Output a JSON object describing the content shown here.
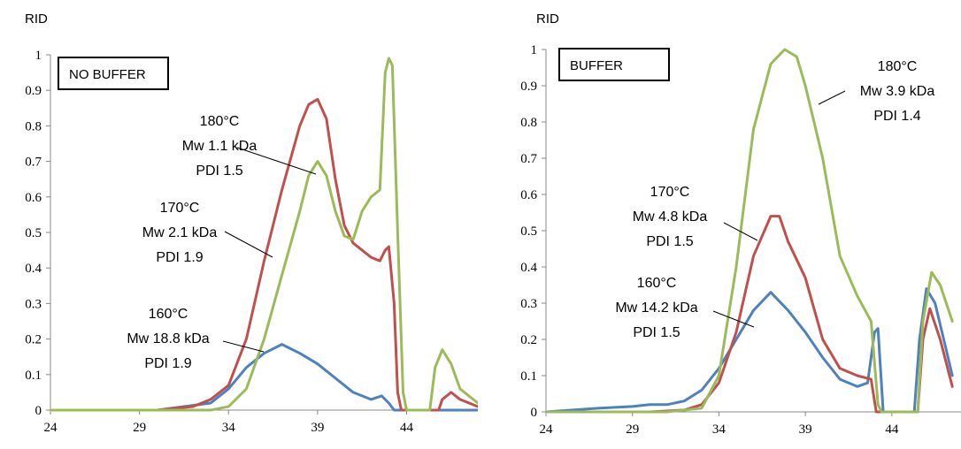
{
  "chart_data": [
    {
      "type": "line",
      "panel_label": "NO BUFFER",
      "ylabel": "RID",
      "xlim": [
        24,
        48
      ],
      "ylim": [
        0,
        1
      ],
      "x_ticks": [
        "24",
        "29",
        "34",
        "39",
        "44"
      ],
      "y_ticks": [
        "0",
        "0.1",
        "0.2",
        "0.3",
        "0.4",
        "0.5",
        "0.6",
        "0.7",
        "0.8",
        "0.9",
        "1"
      ],
      "colors": {
        "160": "#4f81bd",
        "170": "#c0504d",
        "180": "#9bbb59"
      },
      "annotations": [
        {
          "series": "180",
          "lines": [
            "180°C",
            "Mw 1.1 kDa",
            "PDI 1.5"
          ]
        },
        {
          "series": "170",
          "lines": [
            "170°C",
            "Mw 2.1 kDa",
            "PDI 1.9"
          ]
        },
        {
          "series": "160",
          "lines": [
            "160°C",
            "Mw 18.8 kDa",
            "PDI 1.9"
          ]
        }
      ],
      "series": [
        {
          "key": "160",
          "points": [
            [
              24,
              0
            ],
            [
              30,
              0
            ],
            [
              33,
              0.02
            ],
            [
              34,
              0.06
            ],
            [
              35,
              0.12
            ],
            [
              36,
              0.16
            ],
            [
              37,
              0.185
            ],
            [
              38,
              0.16
            ],
            [
              39,
              0.13
            ],
            [
              40,
              0.09
            ],
            [
              41,
              0.05
            ],
            [
              42,
              0.03
            ],
            [
              42.6,
              0.04
            ],
            [
              43,
              0.02
            ],
            [
              43.3,
              0
            ],
            [
              48,
              0
            ]
          ]
        },
        {
          "key": "170",
          "points": [
            [
              24,
              0
            ],
            [
              30,
              0
            ],
            [
              32,
              0.01
            ],
            [
              33,
              0.03
            ],
            [
              34,
              0.07
            ],
            [
              35,
              0.2
            ],
            [
              36,
              0.42
            ],
            [
              37,
              0.62
            ],
            [
              38,
              0.8
            ],
            [
              38.5,
              0.86
            ],
            [
              39,
              0.875
            ],
            [
              39.5,
              0.82
            ],
            [
              40,
              0.65
            ],
            [
              40.5,
              0.52
            ],
            [
              41,
              0.47
            ],
            [
              42,
              0.43
            ],
            [
              42.5,
              0.42
            ],
            [
              42.8,
              0.45
            ],
            [
              43.0,
              0.46
            ],
            [
              43.3,
              0.3
            ],
            [
              43.5,
              0.05
            ],
            [
              43.7,
              0
            ],
            [
              45.8,
              0
            ],
            [
              46,
              0.03
            ],
            [
              46.5,
              0.05
            ],
            [
              47,
              0.03
            ],
            [
              48,
              0.01
            ]
          ]
        },
        {
          "key": "180",
          "points": [
            [
              24,
              0
            ],
            [
              33,
              0
            ],
            [
              34,
              0.01
            ],
            [
              35,
              0.06
            ],
            [
              36,
              0.2
            ],
            [
              37,
              0.38
            ],
            [
              38,
              0.56
            ],
            [
              38.5,
              0.66
            ],
            [
              39,
              0.7
            ],
            [
              39.5,
              0.66
            ],
            [
              40,
              0.56
            ],
            [
              40.5,
              0.49
            ],
            [
              41,
              0.48
            ],
            [
              41.5,
              0.56
            ],
            [
              42,
              0.6
            ],
            [
              42.5,
              0.62
            ],
            [
              42.8,
              0.95
            ],
            [
              43,
              0.99
            ],
            [
              43.2,
              0.97
            ],
            [
              43.5,
              0.5
            ],
            [
              43.8,
              0.05
            ],
            [
              44,
              0
            ],
            [
              45.3,
              0
            ],
            [
              45.6,
              0.12
            ],
            [
              46,
              0.17
            ],
            [
              46.5,
              0.13
            ],
            [
              47,
              0.06
            ],
            [
              48,
              0.02
            ]
          ]
        }
      ]
    },
    {
      "type": "line",
      "panel_label": "BUFFER",
      "ylabel": "RID",
      "xlim": [
        24,
        48
      ],
      "ylim": [
        0,
        1
      ],
      "x_ticks": [
        "24",
        "29",
        "34",
        "39",
        "44"
      ],
      "y_ticks": [
        "0",
        "0.1",
        "0.2",
        "0.3",
        "0.4",
        "0.5",
        "0.6",
        "0.7",
        "0.8",
        "0.9",
        "1"
      ],
      "colors": {
        "160": "#4f81bd",
        "170": "#c0504d",
        "180": "#9bbb59"
      },
      "annotations": [
        {
          "series": "180",
          "lines": [
            "180°C",
            "Mw 3.9 kDa",
            "PDI 1.4"
          ]
        },
        {
          "series": "170",
          "lines": [
            "170°C",
            "Mw 4.8 kDa",
            "PDI 1.5"
          ]
        },
        {
          "series": "160",
          "lines": [
            "160°C",
            "Mw 14.2 kDa",
            "PDI 1.5"
          ]
        }
      ],
      "series": [
        {
          "key": "160",
          "points": [
            [
              24,
              0
            ],
            [
              27,
              0.01
            ],
            [
              29,
              0.015
            ],
            [
              30,
              0.02
            ],
            [
              31,
              0.02
            ],
            [
              32,
              0.03
            ],
            [
              33,
              0.06
            ],
            [
              34,
              0.12
            ],
            [
              35,
              0.2
            ],
            [
              36,
              0.28
            ],
            [
              37,
              0.33
            ],
            [
              38,
              0.28
            ],
            [
              39,
              0.22
            ],
            [
              40,
              0.15
            ],
            [
              41,
              0.09
            ],
            [
              42,
              0.07
            ],
            [
              42.6,
              0.08
            ],
            [
              43,
              0.22
            ],
            [
              43.2,
              0.23
            ],
            [
              43.5,
              0
            ],
            [
              45.3,
              0
            ],
            [
              45.6,
              0.2
            ],
            [
              46,
              0.34
            ],
            [
              46.5,
              0.3
            ],
            [
              47,
              0.2
            ],
            [
              47.5,
              0.1
            ]
          ]
        },
        {
          "key": "170",
          "points": [
            [
              24,
              0
            ],
            [
              30,
              0
            ],
            [
              32,
              0.005
            ],
            [
              33,
              0.02
            ],
            [
              34,
              0.08
            ],
            [
              35,
              0.22
            ],
            [
              36,
              0.43
            ],
            [
              37,
              0.54
            ],
            [
              37.5,
              0.54
            ],
            [
              38,
              0.47
            ],
            [
              39,
              0.37
            ],
            [
              40,
              0.2
            ],
            [
              41,
              0.12
            ],
            [
              42,
              0.1
            ],
            [
              42.8,
              0.09
            ],
            [
              43.1,
              0
            ],
            [
              45.5,
              0
            ],
            [
              45.8,
              0.2
            ],
            [
              46.2,
              0.285
            ],
            [
              46.8,
              0.2
            ],
            [
              47.5,
              0.07
            ]
          ]
        },
        {
          "key": "180",
          "points": [
            [
              24,
              0
            ],
            [
              31,
              0
            ],
            [
              33,
              0.01
            ],
            [
              34,
              0.1
            ],
            [
              35,
              0.4
            ],
            [
              36,
              0.78
            ],
            [
              37,
              0.96
            ],
            [
              37.8,
              1.0
            ],
            [
              38.5,
              0.98
            ],
            [
              39,
              0.9
            ],
            [
              40,
              0.7
            ],
            [
              41,
              0.43
            ],
            [
              42,
              0.32
            ],
            [
              42.8,
              0.25
            ],
            [
              43.2,
              0.02
            ],
            [
              43.4,
              0
            ],
            [
              45.5,
              0
            ],
            [
              45.8,
              0.25
            ],
            [
              46.3,
              0.385
            ],
            [
              46.8,
              0.35
            ],
            [
              47.5,
              0.25
            ]
          ]
        }
      ]
    }
  ]
}
